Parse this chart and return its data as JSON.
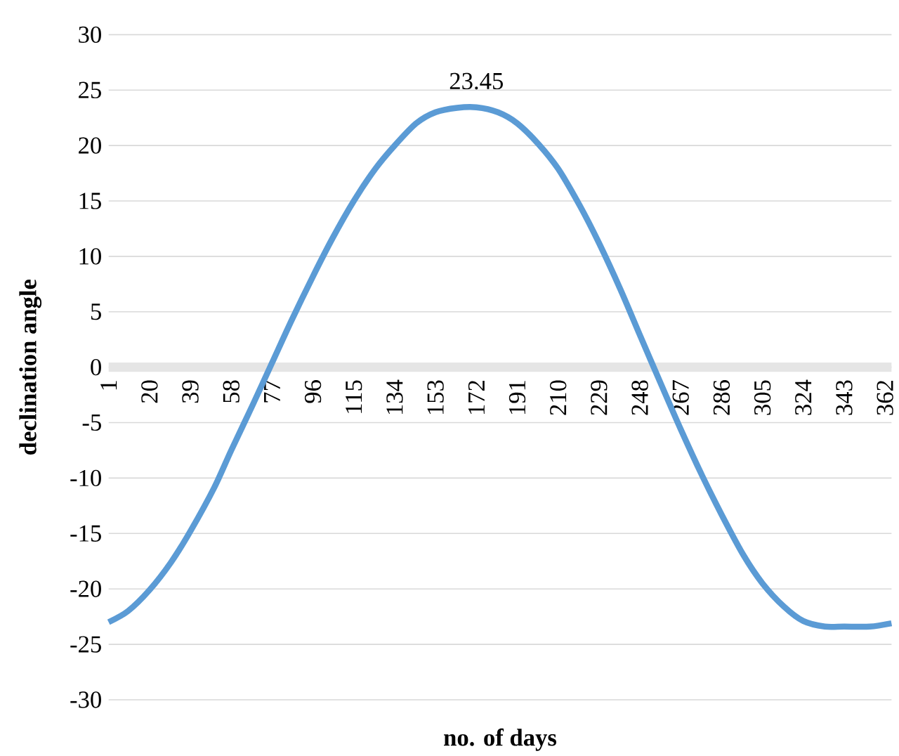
{
  "chart_data": {
    "type": "line",
    "xlabel": "no. of days",
    "ylabel": "declination angle",
    "x": [
      1,
      10,
      20,
      30,
      39,
      50,
      58,
      68,
      77,
      86,
      96,
      105,
      115,
      125,
      134,
      144,
      153,
      163,
      172,
      182,
      191,
      201,
      210,
      220,
      229,
      239,
      248,
      258,
      267,
      277,
      286,
      296,
      305,
      315,
      324,
      334,
      343,
      355,
      365
    ],
    "values": [
      -23.0,
      -22.0,
      -20.1,
      -17.6,
      -14.8,
      -10.9,
      -7.5,
      -3.4,
      0.4,
      4.2,
      8.2,
      11.6,
      15.0,
      17.9,
      20.0,
      22.0,
      23.0,
      23.4,
      23.45,
      23.0,
      22.0,
      20.1,
      17.9,
      14.6,
      11.2,
      7.0,
      2.9,
      -1.6,
      -5.6,
      -9.8,
      -13.3,
      -16.9,
      -19.5,
      -21.6,
      -22.9,
      -23.4,
      -23.4,
      -23.4,
      -23.1
    ],
    "color": "#5b9bd5",
    "line_style": "solid",
    "marker": "none",
    "grid": "y",
    "xlim": [
      1,
      365
    ],
    "xticks": [
      1,
      20,
      39,
      58,
      77,
      96,
      115,
      134,
      153,
      172,
      191,
      210,
      229,
      248,
      267,
      286,
      305,
      324,
      343,
      362
    ],
    "ylim": [
      -30,
      30
    ],
    "yticks": [
      -30,
      -25,
      -20,
      -15,
      -10,
      -5,
      0,
      5,
      10,
      15,
      20,
      25,
      30
    ],
    "annotations": [
      {
        "text": "23.45",
        "x": 172,
        "y": 23.45
      }
    ]
  }
}
